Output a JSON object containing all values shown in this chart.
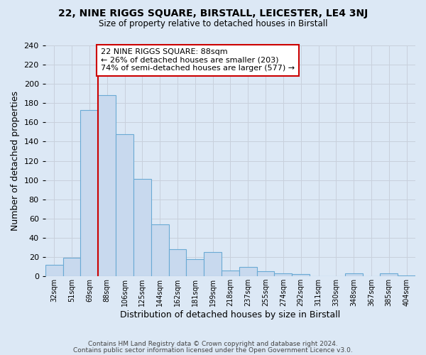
{
  "title": "22, NINE RIGGS SQUARE, BIRSTALL, LEICESTER, LE4 3NJ",
  "subtitle": "Size of property relative to detached houses in Birstall",
  "xlabel": "Distribution of detached houses by size in Birstall",
  "ylabel": "Number of detached properties",
  "bar_color": "#c8d9ee",
  "bar_edge_color": "#6aaad4",
  "vline_color": "#cc0000",
  "vline_index": 3,
  "categories": [
    "32sqm",
    "51sqm",
    "69sqm",
    "88sqm",
    "106sqm",
    "125sqm",
    "144sqm",
    "162sqm",
    "181sqm",
    "199sqm",
    "218sqm",
    "237sqm",
    "255sqm",
    "274sqm",
    "292sqm",
    "311sqm",
    "330sqm",
    "348sqm",
    "367sqm",
    "385sqm",
    "404sqm"
  ],
  "values": [
    12,
    19,
    173,
    188,
    148,
    101,
    54,
    28,
    18,
    25,
    6,
    10,
    5,
    3,
    2,
    0,
    0,
    3,
    0,
    3,
    1
  ],
  "ylim": [
    0,
    240
  ],
  "yticks": [
    0,
    20,
    40,
    60,
    80,
    100,
    120,
    140,
    160,
    180,
    200,
    220,
    240
  ],
  "annotation_title": "22 NINE RIGGS SQUARE: 88sqm",
  "annotation_line1": "← 26% of detached houses are smaller (203)",
  "annotation_line2": "74% of semi-detached houses are larger (577) →",
  "grid_color": "#c8d0dc",
  "footer1": "Contains HM Land Registry data © Crown copyright and database right 2024.",
  "footer2": "Contains public sector information licensed under the Open Government Licence v3.0.",
  "bg_color": "#dce8f5"
}
